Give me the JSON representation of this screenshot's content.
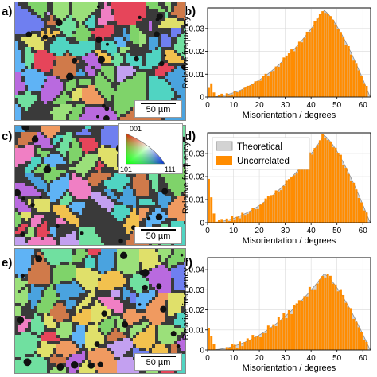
{
  "figure": {
    "panels": {
      "a": "a)",
      "b": "b)",
      "c": "c)",
      "d": "d)",
      "e": "e)",
      "f": "f)"
    },
    "scalebar_label": "50 µm",
    "ipf_key": {
      "top": "001",
      "left": "101",
      "right": "111"
    },
    "colors": {
      "bar": "#ff8c00",
      "theoretical_fill": "#d3d3d3",
      "theoretical_edge": "#8c8c8c"
    }
  },
  "chart_data": [
    {
      "type": "bar",
      "panel": "b",
      "xlabel": "Misorientation / degrees",
      "ylabel": "Relative frequency",
      "xticks": [
        0,
        10,
        20,
        30,
        40,
        50,
        60
      ],
      "yticks": [
        0,
        0.01,
        0.02,
        0.03
      ],
      "ytick_labels": [
        "0",
        "0.01",
        "0.02",
        "0.03"
      ],
      "xlim": [
        0,
        63
      ],
      "ylim": [
        0,
        0.039
      ],
      "grid": true,
      "seed": 11,
      "noise": 0.0022,
      "low_angle": [
        0.004,
        0.006,
        0.002
      ],
      "theoretical_peak": 0.0378
    },
    {
      "type": "bar",
      "panel": "d",
      "xlabel": "Misorientation / degrees",
      "ylabel": "Relative frequency",
      "xticks": [
        0,
        10,
        20,
        30,
        40,
        50,
        60
      ],
      "yticks": [
        0,
        0.01,
        0.02,
        0.03
      ],
      "ytick_labels": [
        "0",
        "0.01",
        "0.02",
        "0.03"
      ],
      "xlim": [
        0,
        63
      ],
      "ylim": [
        0,
        0.039
      ],
      "grid": true,
      "legend": [
        "Theoretical",
        "Uncorrelated"
      ],
      "legend_position": "top-left",
      "seed": 23,
      "noise": 0.0028,
      "low_angle": [
        0.019,
        0.011,
        0.004
      ],
      "theoretical_peak": 0.0378
    },
    {
      "type": "bar",
      "panel": "f",
      "xlabel": "Misorientation / degrees",
      "ylabel": "Relative frequency",
      "xticks": [
        0,
        10,
        20,
        30,
        40,
        50,
        60
      ],
      "yticks": [
        0,
        0.01,
        0.02,
        0.03,
        0.04
      ],
      "ytick_labels": [
        "0",
        "0.01",
        "0.02",
        "0.03",
        "0.04"
      ],
      "xlim": [
        0,
        63
      ],
      "ylim": [
        0,
        0.046
      ],
      "grid": true,
      "seed": 37,
      "noise": 0.0042,
      "low_angle": [
        0.011,
        0.007,
        0.003
      ],
      "theoretical_peak": 0.0378
    }
  ]
}
